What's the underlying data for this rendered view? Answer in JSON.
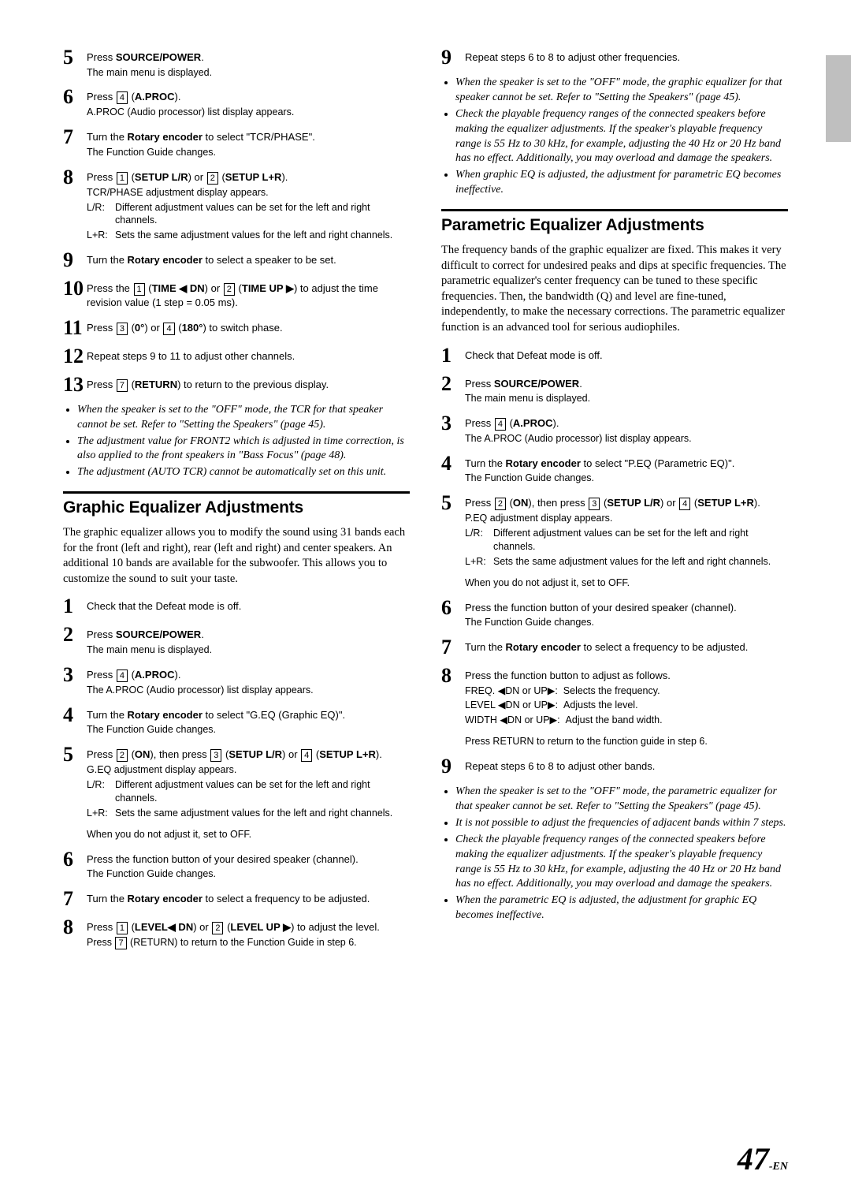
{
  "pageNumber": "47",
  "pageSuffix": "-EN",
  "sideTabColor": "#bfbfbf",
  "leftCol": {
    "topSteps": [
      {
        "num": "5",
        "lines": [
          "Press <b>SOURCE/POWER</b>.",
          "The main menu is displayed."
        ]
      },
      {
        "num": "6",
        "lines": [
          "Press [4] (<b>A.PROC</b>).",
          "A.PROC (Audio processor) list display appears."
        ]
      },
      {
        "num": "7",
        "lines": [
          "Turn the <b>Rotary encoder</b> to select \"TCR/PHASE\".",
          "The Function Guide changes."
        ]
      },
      {
        "num": "8",
        "lines": [
          "Press [1] (<b>SETUP L/R</b>) or [2] (<b>SETUP L+R</b>).",
          "TCR/PHASE adjustment display appears."
        ],
        "rows": [
          {
            "lbl": "L/R:",
            "txt": "Different adjustment values can be set for the left and right channels."
          },
          {
            "lbl": "L+R:",
            "txt": "Sets the same adjustment values for the left and right channels."
          }
        ]
      },
      {
        "num": "9",
        "lines": [
          "Turn the <b>Rotary encoder</b> to select a speaker to be set."
        ]
      },
      {
        "num": "10",
        "lines": [
          "Press the [1] (<b>TIME ◀ DN</b>) or [2] (<b>TIME UP ▶</b>) to adjust the time revision value (1 step = 0.05 ms)."
        ]
      },
      {
        "num": "11",
        "lines": [
          "Press [3] (<b>0°</b>) or [4] (<b>180°</b>) to switch phase."
        ]
      },
      {
        "num": "12",
        "lines": [
          "Repeat steps 9 to 11 to adjust other channels."
        ]
      },
      {
        "num": "13",
        "lines": [
          "Press [7] (<b>RETURN</b>) to return to the previous display."
        ]
      }
    ],
    "topNotes": [
      "When the speaker is set to the \"OFF\" mode, the TCR for that speaker cannot be set. Refer to \"Setting the Speakers\" (page 45).",
      "The adjustment value for FRONT2 which is adjusted in time correction, is also applied to the front speakers in \"Bass Focus\" (page 48).",
      "The adjustment (AUTO TCR) cannot be automatically set on this unit."
    ],
    "graphic": {
      "title": "Graphic Equalizer Adjustments",
      "intro": "The graphic equalizer allows you to modify the sound using 31 bands each for the front (left and right), rear (left and right) and center speakers. An additional 10 bands are available for the subwoofer. This allows you to customize the sound to suit your taste.",
      "steps": [
        {
          "num": "1",
          "lines": [
            "Check that the Defeat mode is off."
          ]
        },
        {
          "num": "2",
          "lines": [
            "Press <b>SOURCE/POWER</b>.",
            "The main menu is displayed."
          ]
        },
        {
          "num": "3",
          "lines": [
            "Press [4] (<b>A.PROC</b>).",
            "The A.PROC (Audio processor) list display appears."
          ]
        },
        {
          "num": "4",
          "lines": [
            "Turn the <b>Rotary encoder</b> to select \"G.EQ (Graphic EQ)\".",
            "The Function Guide changes."
          ]
        },
        {
          "num": "5",
          "lines": [
            "Press [2] (<b>ON</b>), then press [3] (<b>SETUP L/R</b>) or [4] (<b>SETUP L+R</b>).",
            "G.EQ adjustment display appears."
          ],
          "rows": [
            {
              "lbl": "L/R:",
              "txt": "Different adjustment values can be set for the left and right channels."
            },
            {
              "lbl": "L+R:",
              "txt": "Sets the same adjustment values for the left and right channels."
            }
          ],
          "after": "When you do not adjust it, set to OFF."
        },
        {
          "num": "6",
          "lines": [
            "Press the function button of your desired speaker (channel).",
            "The Function Guide changes."
          ]
        },
        {
          "num": "7",
          "lines": [
            "Turn the <b>Rotary encoder</b> to select a frequency to be adjusted."
          ]
        },
        {
          "num": "8",
          "lines": [
            "Press [1] (<b>LEVEL◀ DN</b>) or [2] (<b>LEVEL UP ▶</b>) to adjust the level.",
            "Press [7] (RETURN) to return to the Function Guide in step 6."
          ]
        }
      ]
    }
  },
  "rightCol": {
    "topContinue": [
      {
        "num": "9",
        "lines": [
          "Repeat steps 6 to 8 to adjust other frequencies."
        ]
      }
    ],
    "topNotes": [
      "When the speaker is set to the \"OFF\" mode, the graphic equalizer for that speaker cannot be set. Refer to \"Setting the Speakers\" (page 45).",
      "Check the playable frequency ranges of the connected speakers before making the equalizer adjustments. If the speaker's playable frequency range is 55 Hz to 30 kHz, for example, adjusting the 40 Hz or 20 Hz band has no effect. Additionally, you may overload and damage the speakers.",
      "When graphic EQ is adjusted, the adjustment for parametric EQ becomes ineffective."
    ],
    "parametric": {
      "title": "Parametric Equalizer Adjustments",
      "intro": "The frequency bands of the graphic equalizer are fixed. This makes it very difficult to correct for undesired peaks and dips at specific frequencies. The parametric equalizer's center frequency can be tuned to these specific frequencies. Then, the bandwidth (Q) and level are fine-tuned, independently, to make the necessary corrections. The parametric equalizer function is an advanced tool for serious audiophiles.",
      "steps": [
        {
          "num": "1",
          "lines": [
            "Check that Defeat mode is off."
          ]
        },
        {
          "num": "2",
          "lines": [
            "Press <b>SOURCE/POWER</b>.",
            "The main menu is displayed."
          ]
        },
        {
          "num": "3",
          "lines": [
            "Press [4] (<b>A.PROC</b>).",
            "The A.PROC (Audio processor) list display appears."
          ]
        },
        {
          "num": "4",
          "lines": [
            "Turn the <b>Rotary encoder</b> to select \"P.EQ (Parametric EQ)\".",
            "The Function Guide changes."
          ]
        },
        {
          "num": "5",
          "lines": [
            "Press [2] (<b>ON</b>), then press [3] (<b>SETUP L/R</b>) or [4] (<b>SETUP L+R</b>).",
            "P.EQ adjustment display appears."
          ],
          "rows": [
            {
              "lbl": "L/R:",
              "txt": "Different adjustment values can be set for the left and right channels."
            },
            {
              "lbl": "L+R:",
              "txt": "Sets the same adjustment values for the left and right channels."
            }
          ],
          "after": "When you do not adjust it, set to OFF."
        },
        {
          "num": "6",
          "lines": [
            "Press the function button of your desired speaker (channel).",
            "The Function Guide changes."
          ]
        },
        {
          "num": "7",
          "lines": [
            "Turn the <b>Rotary encoder</b> to select a frequency to be adjusted."
          ]
        },
        {
          "num": "8",
          "lines": [
            "Press the function button to adjust as follows."
          ],
          "rows": [
            {
              "lbl": "",
              "txt": "FREQ. ◀DN or UP▶:&nbsp;&nbsp;Selects the frequency."
            },
            {
              "lbl": "",
              "txt": "LEVEL ◀DN or UP▶:&nbsp;&nbsp;Adjusts the level."
            },
            {
              "lbl": "",
              "txt": "WIDTH ◀DN or UP▶:&nbsp;&nbsp;Adjust the band width."
            }
          ],
          "after": "Press RETURN to return to the function guide in step 6."
        },
        {
          "num": "9",
          "lines": [
            "Repeat steps 6 to 8 to adjust other bands."
          ]
        }
      ],
      "notes": [
        "When the speaker is set to the \"OFF\" mode, the parametric equalizer for that speaker cannot be set. Refer to \"Setting the Speakers\" (page 45).",
        "It is not possible to adjust the frequencies of adjacent bands within 7 steps.",
        "Check the playable frequency ranges of the connected speakers before making the equalizer adjustments. If the speaker's playable frequency range is 55 Hz to 30 kHz, for example, adjusting the 40 Hz or 20 Hz band has no effect. Additionally, you may overload and damage the speakers.",
        "When the parametric EQ is adjusted, the adjustment for graphic EQ becomes ineffective."
      ]
    }
  }
}
